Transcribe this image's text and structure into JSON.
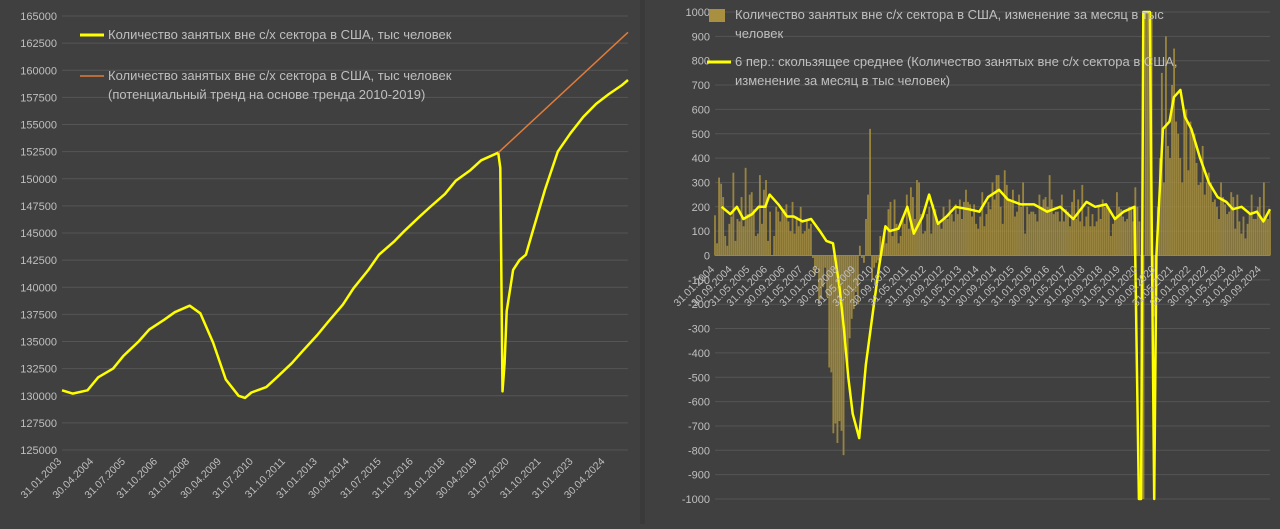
{
  "chart_data": [
    {
      "type": "line",
      "title": "",
      "legend": [
        {
          "label": "Количество занятых вне с/х сектора в США, тыс человек",
          "color": "#ffff00"
        },
        {
          "label": "Количество занятых вне с/х сектора в США, тыс человек",
          "label2": "(потенциальный тренд на основе тренда 2010-2019)",
          "color": "#e07b39"
        }
      ],
      "legend_position": "top-left",
      "ylim": [
        125000,
        165000
      ],
      "yticks": [
        "125000",
        "127500",
        "130000",
        "132500",
        "135000",
        "137500",
        "140000",
        "142500",
        "145000",
        "147500",
        "150000",
        "152500",
        "155000",
        "157500",
        "160000",
        "162500",
        "165000"
      ],
      "x_range": [
        "2003-01",
        "2025-03"
      ],
      "xticks": [
        "31.01.2003",
        "30.04.2004",
        "31.07.2005",
        "31.10.2006",
        "31.01.2008",
        "30.04.2009",
        "31.07.2010",
        "31.10.2011",
        "31.01.2013",
        "30.04.2014",
        "31.07.2015",
        "31.10.2016",
        "31.01.2018",
        "30.04.2019",
        "31.07.2020",
        "31.10.2021",
        "31.01.2023",
        "30.04.2024"
      ],
      "series": [
        {
          "name": "Количество занятых вне с/х сектора в США, тыс человек",
          "color": "#ffff00",
          "points": [
            [
              "2003-01",
              130500
            ],
            [
              "2003-06",
              130200
            ],
            [
              "2004-01",
              130500
            ],
            [
              "2004-06",
              131700
            ],
            [
              "2005-01",
              132500
            ],
            [
              "2005-06",
              133700
            ],
            [
              "2006-01",
              135000
            ],
            [
              "2006-06",
              136100
            ],
            [
              "2007-01",
              137000
            ],
            [
              "2007-06",
              137700
            ],
            [
              "2008-01",
              138300
            ],
            [
              "2008-06",
              137600
            ],
            [
              "2008-12",
              134900
            ],
            [
              "2009-06",
              131500
            ],
            [
              "2009-12",
              130000
            ],
            [
              "2010-03",
              129800
            ],
            [
              "2010-06",
              130300
            ],
            [
              "2011-01",
              130800
            ],
            [
              "2011-06",
              131700
            ],
            [
              "2012-01",
              133000
            ],
            [
              "2012-06",
              134100
            ],
            [
              "2013-01",
              135600
            ],
            [
              "2013-06",
              136800
            ],
            [
              "2014-01",
              138400
            ],
            [
              "2014-06",
              139900
            ],
            [
              "2015-01",
              141600
            ],
            [
              "2015-06",
              143000
            ],
            [
              "2016-01",
              144200
            ],
            [
              "2016-06",
              145200
            ],
            [
              "2017-01",
              146500
            ],
            [
              "2017-06",
              147400
            ],
            [
              "2018-01",
              148600
            ],
            [
              "2018-06",
              149800
            ],
            [
              "2019-01",
              150800
            ],
            [
              "2019-06",
              151700
            ],
            [
              "2020-02",
              152400
            ],
            [
              "2020-03",
              151000
            ],
            [
              "2020-04",
              130400
            ],
            [
              "2020-05",
              133000
            ],
            [
              "2020-06",
              137800
            ],
            [
              "2020-09",
              141600
            ],
            [
              "2020-12",
              142500
            ],
            [
              "2021-03",
              143000
            ],
            [
              "2021-06",
              145000
            ],
            [
              "2021-12",
              149000
            ],
            [
              "2022-06",
              152500
            ],
            [
              "2022-12",
              154200
            ],
            [
              "2023-06",
              155700
            ],
            [
              "2023-12",
              156900
            ],
            [
              "2024-06",
              157800
            ],
            [
              "2024-12",
              158600
            ],
            [
              "2025-03",
              159100
            ]
          ]
        },
        {
          "name": "Количество занятых вне с/х сектора в США, тыс человек (потенциальный тренд на основе тренда 2010-2019)",
          "color": "#e07b39",
          "points": [
            [
              "2020-02",
              152400
            ],
            [
              "2025-03",
              163500
            ]
          ]
        }
      ]
    },
    {
      "type": "bar",
      "title": "",
      "legend": [
        {
          "label": "Количество занятых вне с/х сектора в США, изменение за месяц в тыс",
          "label2": "человек",
          "color": "#a89040",
          "kind": "box"
        },
        {
          "label": "6 пер.: скользящее среднее (Количество занятых вне с/х сектора в США,",
          "label2": "изменение за месяц в тыс человек)",
          "color": "#ffff00",
          "kind": "line"
        }
      ],
      "legend_position": "top",
      "ylim": [
        -1000,
        1000
      ],
      "yticks": [
        "-1000",
        "-900",
        "-800",
        "-700",
        "-600",
        "-500",
        "-400",
        "-300",
        "-200",
        "-100",
        "0",
        "100",
        "200",
        "300",
        "400",
        "500",
        "600",
        "700",
        "800",
        "900",
        "1000"
      ],
      "x_range": [
        "2004-01",
        "2025-03"
      ],
      "xticks": [
        "31.01.2004",
        "30.09.2004",
        "31.05.2005",
        "31.01.2006",
        "30.09.2006",
        "31.05.2007",
        "31.01.2008",
        "30.09.2008",
        "31.05.2009",
        "31.01.2010",
        "30.09.2010",
        "31.05.2011",
        "31.01.2012",
        "30.09.2012",
        "31.05.2013",
        "31.01.2014",
        "30.09.2014",
        "31.05.2015",
        "31.01.2016",
        "30.09.2016",
        "31.05.2017",
        "31.01.2018",
        "30.09.2018",
        "31.05.2019",
        "31.01.2020",
        "30.09.2020",
        "31.05.2021",
        "31.01.2022",
        "30.09.2022",
        "31.05.2023",
        "31.01.2024",
        "30.09.2024"
      ],
      "series": [
        {
          "name": "Количество занятых вне с/х сектора в США, изменение за месяц в тыс человек",
          "color": "#a89040",
          "start": "2004-01",
          "values": [
            165,
            50,
            320,
            295,
            240,
            80,
            40,
            130,
            160,
            340,
            60,
            150,
            140,
            240,
            120,
            360,
            170,
            250,
            260,
            190,
            80,
            90,
            330,
            130,
            270,
            310,
            60,
            180,
            0,
            80,
            200,
            180,
            140,
            180,
            190,
            210,
            140,
            100,
            220,
            90,
            160,
            120,
            200,
            90,
            100,
            140,
            110,
            130,
            -10,
            -80,
            -50,
            -200,
            -180,
            -130,
            -50,
            -170,
            -460,
            -480,
            -730,
            -690,
            -770,
            -680,
            -720,
            -820,
            -350,
            -470,
            -340,
            -260,
            -220,
            -150,
            -200,
            40,
            -10,
            -30,
            150,
            250,
            520,
            -100,
            -50,
            -30,
            -20,
            80,
            40,
            110,
            50,
            190,
            220,
            80,
            230,
            130,
            50,
            80,
            160,
            130,
            250,
            110,
            280,
            240,
            150,
            310,
            300,
            170,
            90,
            100,
            170,
            200,
            90,
            210,
            190,
            140,
            130,
            110,
            200,
            150,
            150,
            230,
            170,
            140,
            210,
            170,
            230,
            150,
            220,
            270,
            220,
            210,
            160,
            210,
            130,
            110,
            160,
            260,
            120,
            170,
            220,
            190,
            300,
            230,
            330,
            330,
            200,
            130,
            350,
            290,
            230,
            220,
            270,
            160,
            180,
            250,
            200,
            300,
            90,
            200,
            170,
            180,
            180,
            170,
            140,
            250,
            200,
            230,
            240,
            200,
            330,
            230,
            170,
            180,
            180,
            140,
            250,
            140,
            190,
            180,
            120,
            220,
            270,
            150,
            230,
            140,
            290,
            120,
            160,
            200,
            120,
            170,
            120,
            140,
            200,
            150,
            230,
            200,
            210,
            190,
            80,
            130,
            160,
            260,
            200,
            190,
            160,
            140,
            150,
            200,
            200,
            140,
            280,
            200,
            140,
            -1000,
            -1000,
            1000,
            1000,
            1000,
            1000,
            -250,
            -300,
            200,
            400,
            750,
            300,
            900,
            450,
            400,
            700,
            850,
            550,
            500,
            400,
            300,
            600,
            600,
            350,
            550,
            500,
            500,
            380,
            290,
            300,
            450,
            250,
            300,
            340,
            300,
            220,
            230,
            200,
            150,
            300,
            240,
            210,
            170,
            180,
            260,
            240,
            110,
            250,
            140,
            90,
            160,
            70,
            130,
            170,
            250,
            150,
            150,
            200,
            240,
            150,
            300,
            160,
            150,
            180
          ]
        },
        {
          "name": "6 пер.: скользящее среднее (Количество занятых вне с/х сектора в США, изменение за месяц в тыс человек)",
          "color": "#ffff00",
          "points": [
            [
              "2004-04",
              200
            ],
            [
              "2004-08",
              170
            ],
            [
              "2004-11",
              200
            ],
            [
              "2005-02",
              150
            ],
            [
              "2005-06",
              170
            ],
            [
              "2005-09",
              200
            ],
            [
              "2005-12",
              200
            ],
            [
              "2006-02",
              250
            ],
            [
              "2006-06",
              210
            ],
            [
              "2006-10",
              160
            ],
            [
              "2007-01",
              160
            ],
            [
              "2007-05",
              140
            ],
            [
              "2007-09",
              150
            ],
            [
              "2008-01",
              100
            ],
            [
              "2008-04",
              60
            ],
            [
              "2008-07",
              50
            ],
            [
              "2008-10",
              -130
            ],
            [
              "2008-12",
              -300
            ],
            [
              "2009-02",
              -500
            ],
            [
              "2009-04",
              -650
            ],
            [
              "2009-07",
              -750
            ],
            [
              "2009-10",
              -450
            ],
            [
              "2010-01",
              -250
            ],
            [
              "2010-04",
              -50
            ],
            [
              "2010-07",
              120
            ],
            [
              "2010-09",
              100
            ],
            [
              "2011-01",
              110
            ],
            [
              "2011-05",
              200
            ],
            [
              "2011-08",
              90
            ],
            [
              "2011-12",
              160
            ],
            [
              "2012-03",
              250
            ],
            [
              "2012-07",
              130
            ],
            [
              "2012-11",
              160
            ],
            [
              "2013-03",
              200
            ],
            [
              "2013-09",
              190
            ],
            [
              "2014-02",
              180
            ],
            [
              "2014-06",
              240
            ],
            [
              "2014-11",
              270
            ],
            [
              "2015-03",
              230
            ],
            [
              "2015-09",
              210
            ],
            [
              "2016-03",
              210
            ],
            [
              "2016-09",
              180
            ],
            [
              "2017-03",
              200
            ],
            [
              "2017-09",
              150
            ],
            [
              "2018-03",
              220
            ],
            [
              "2018-07",
              200
            ],
            [
              "2018-12",
              210
            ],
            [
              "2019-04",
              150
            ],
            [
              "2019-08",
              180
            ],
            [
              "2020-01",
              200
            ],
            [
              "2020-03",
              -1000
            ],
            [
              "2020-04",
              -1000
            ],
            [
              "2020-05",
              1000
            ],
            [
              "2020-08",
              1000
            ],
            [
              "2020-10",
              -1000
            ],
            [
              "2020-11",
              0
            ],
            [
              "2021-02",
              520
            ],
            [
              "2021-05",
              550
            ],
            [
              "2021-07",
              650
            ],
            [
              "2021-10",
              680
            ],
            [
              "2021-12",
              570
            ],
            [
              "2022-03",
              520
            ],
            [
              "2022-07",
              400
            ],
            [
              "2022-11",
              300
            ],
            [
              "2023-03",
              240
            ],
            [
              "2023-07",
              220
            ],
            [
              "2023-10",
              190
            ],
            [
              "2024-02",
              200
            ],
            [
              "2024-06",
              170
            ],
            [
              "2024-09",
              180
            ],
            [
              "2024-12",
              140
            ],
            [
              "2025-03",
              190
            ]
          ]
        }
      ]
    }
  ]
}
